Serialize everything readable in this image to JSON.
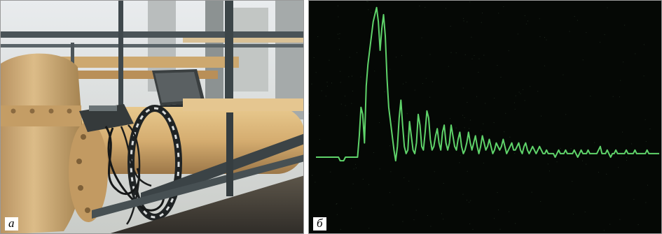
{
  "panels": {
    "a": {
      "label": "а"
    },
    "b": {
      "label": "б"
    }
  },
  "colors": {
    "pipe": "#d9b277",
    "flange": "#c8a06a",
    "rail": "#4b5559",
    "sky": "#eef0f0",
    "scope_background": "#050805",
    "trace": "#5fd36a"
  },
  "waveform": {
    "description_type": "signal trace",
    "baseline": 0,
    "samples": [
      0,
      0,
      0,
      0,
      0,
      0,
      0,
      0,
      0,
      0,
      0,
      0,
      0,
      0,
      -1,
      -1,
      -1,
      0,
      0,
      0,
      0,
      0,
      0,
      0,
      0,
      6,
      14,
      12,
      4,
      20,
      26,
      30,
      34,
      38,
      40,
      42,
      38,
      30,
      36,
      40,
      34,
      22,
      14,
      10,
      6,
      2,
      -1,
      3,
      11,
      16,
      9,
      3,
      1,
      2,
      10,
      6,
      2,
      1,
      4,
      12,
      9,
      3,
      2,
      7,
      13,
      11,
      5,
      2,
      3,
      6,
      8,
      4,
      2,
      7,
      9,
      4,
      2,
      4,
      9,
      6,
      3,
      2,
      5,
      7,
      3,
      1,
      2,
      4,
      7,
      4,
      2,
      4,
      6,
      3,
      1,
      3,
      6,
      4,
      2,
      3,
      5,
      3,
      1,
      2,
      4,
      3,
      2,
      3,
      5,
      3,
      1,
      2,
      3,
      4,
      2,
      2,
      3,
      4,
      2,
      1,
      3,
      4,
      2,
      1,
      2,
      3,
      2,
      1,
      2,
      3,
      2,
      1,
      1,
      2,
      1,
      1,
      1,
      1,
      0,
      1,
      2,
      1,
      1,
      1,
      2,
      1,
      1,
      1,
      1,
      2,
      1,
      0,
      1,
      2,
      1,
      1,
      1,
      2,
      1,
      1,
      1,
      1,
      1,
      2,
      3,
      1,
      1,
      1,
      2,
      1,
      0,
      1,
      1,
      2,
      1,
      1,
      1,
      1,
      1,
      2,
      1,
      1,
      1,
      1,
      2,
      1,
      1,
      1,
      1,
      1,
      1,
      2,
      1,
      1,
      1,
      1,
      1,
      1,
      1
    ]
  }
}
